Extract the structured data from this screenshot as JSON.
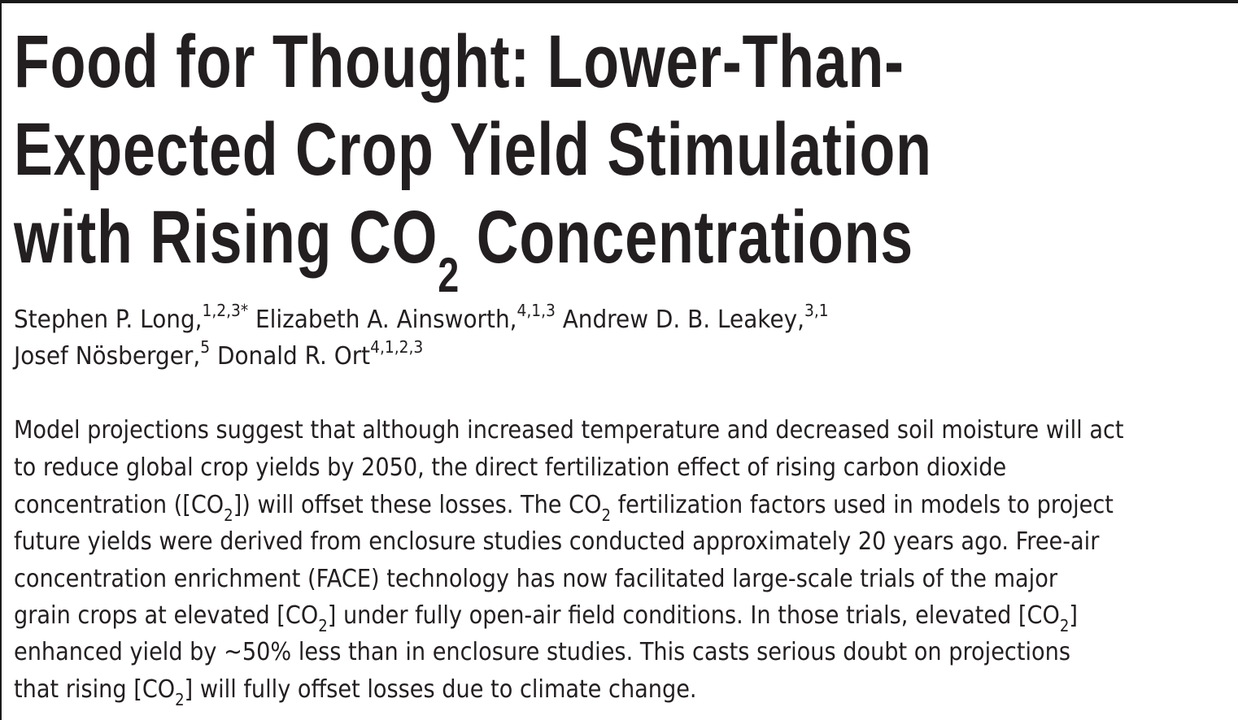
{
  "title": {
    "lines": [
      [
        {
          "t": "Food for Thought: Lower-Than-"
        }
      ],
      [
        {
          "t": "Expected Crop Yield Stimulation"
        }
      ],
      [
        {
          "t": "with Rising CO"
        },
        {
          "sub": "2"
        },
        {
          "t": " Concentrations"
        }
      ]
    ]
  },
  "authors": {
    "lines": [
      [
        {
          "t": "Stephen P. Long,"
        },
        {
          "sup": "1,2,3*"
        },
        {
          "t": " Elizabeth A. Ainsworth,"
        },
        {
          "sup": "4,1,3"
        },
        {
          "t": " Andrew D. B. Leakey,"
        },
        {
          "sup": "3,1"
        }
      ],
      [
        {
          "t": "Josef Nösberger,"
        },
        {
          "sup": "5"
        },
        {
          "t": " Donald R. Ort"
        },
        {
          "sup": "4,1,2,3"
        }
      ]
    ]
  },
  "abstract": {
    "lines": [
      [
        {
          "t": "Model projections suggest that although increased temperature and decreased soil moisture will act"
        }
      ],
      [
        {
          "t": "to reduce global crop yields by 2050, the direct fertilization effect of rising carbon dioxide"
        }
      ],
      [
        {
          "t": "concentration ([CO"
        },
        {
          "sub": "2"
        },
        {
          "t": "]) will offset these losses. The CO"
        },
        {
          "sub": "2"
        },
        {
          "t": " fertilization factors used in models to project"
        }
      ],
      [
        {
          "t": "future yields were derived from enclosure studies conducted approximately 20 years ago. Free-air"
        }
      ],
      [
        {
          "t": "concentration enrichment (FACE) technology has now facilitated large-scale trials of the major"
        }
      ],
      [
        {
          "t": "grain crops at elevated [CO"
        },
        {
          "sub": "2"
        },
        {
          "t": "] under fully open-air field conditions. In those trials, elevated [CO"
        },
        {
          "sub": "2"
        },
        {
          "t": "]"
        }
      ],
      [
        {
          "t": "enhanced yield by ~50% less than in enclosure studies. This casts serious doubt on projections"
        }
      ],
      [
        {
          "t": "that rising [CO"
        },
        {
          "sub": "2"
        },
        {
          "t": "] will fully offset losses due to climate change."
        }
      ]
    ]
  }
}
